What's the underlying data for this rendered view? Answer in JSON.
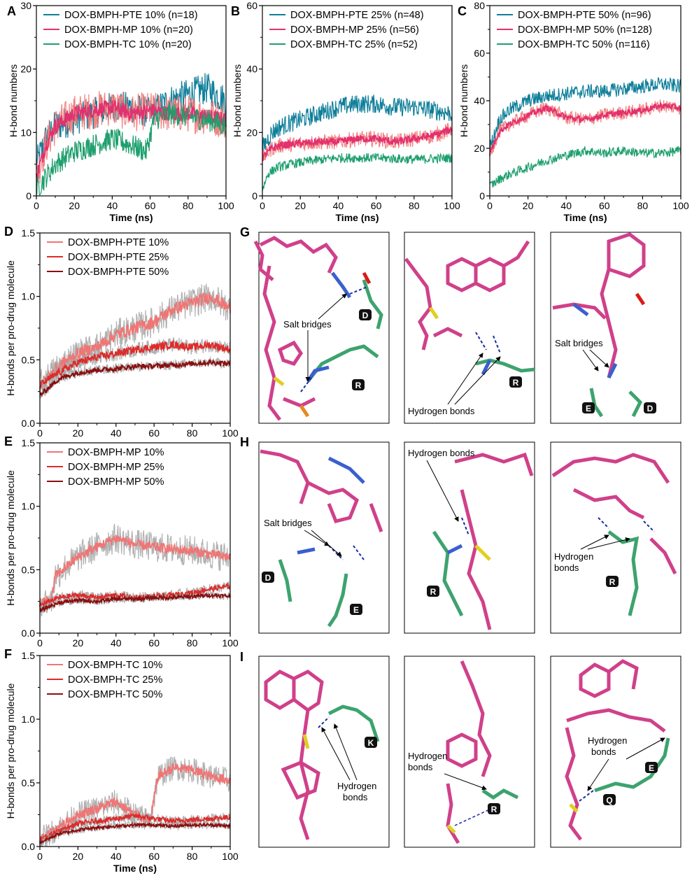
{
  "colors": {
    "pte10": "#0f7f9a",
    "mp10": "#e3306e",
    "tc10": "#1e9f6e",
    "light": "#f07575",
    "mid": "#de2b2b",
    "dark": "#8a0f0f",
    "grey": "#a8a8a8",
    "mol_pink": "#d0408a",
    "mol_green": "#3da36e",
    "mol_blue": "#3a5fd0",
    "mol_red": "#d91a1a",
    "mol_yellow": "#e0d020",
    "mol_grey": "#9a9a9a",
    "hbond": "#1a2aa0"
  },
  "chart_data": [
    {
      "id": "A",
      "type": "line",
      "ylabel": "H-bond numbers",
      "xlabel": "Time (ns)",
      "xlim": [
        0,
        100
      ],
      "ylim": [
        0,
        30
      ],
      "yticks": [
        0,
        10,
        20,
        30
      ],
      "xticks": [
        0,
        20,
        40,
        60,
        80,
        100
      ],
      "series": [
        {
          "name": "DOX-BMPH-PTE 10% (n=18)",
          "color": "#0f7f9a",
          "x": [
            0,
            5,
            10,
            20,
            30,
            40,
            50,
            60,
            70,
            80,
            90,
            100
          ],
          "y": [
            5,
            9,
            11,
            12,
            13,
            14,
            14,
            13,
            15,
            16,
            17,
            15
          ],
          "noise": 2.5
        },
        {
          "name": "DOX-BMPH-MP 10% (n=20)",
          "color": "#e3306e",
          "x": [
            0,
            5,
            10,
            20,
            30,
            40,
            50,
            60,
            70,
            80,
            90,
            100
          ],
          "y": [
            3,
            8,
            11,
            13,
            13.5,
            14,
            13,
            13.5,
            13,
            13,
            12.5,
            12
          ],
          "noise": 1.2,
          "band": "#f07575",
          "band_noise": 3
        },
        {
          "name": "DOX-BMPH-TC 10% (n=20)",
          "color": "#1e9f6e",
          "x": [
            0,
            5,
            10,
            20,
            30,
            40,
            50,
            58,
            62,
            70,
            80,
            90,
            100
          ],
          "y": [
            1,
            3,
            5,
            7,
            8,
            9,
            8,
            7,
            12,
            13,
            12.5,
            12,
            11
          ],
          "noise": 1.8
        }
      ]
    },
    {
      "id": "B",
      "type": "line",
      "ylabel": "H-bond numbers",
      "xlabel": "Time (ns)",
      "xlim": [
        0,
        100
      ],
      "ylim": [
        0,
        60
      ],
      "yticks": [
        0,
        20,
        40,
        60
      ],
      "xticks": [
        0,
        20,
        40,
        60,
        80,
        100
      ],
      "series": [
        {
          "name": "DOX-BMPH-PTE 25% (n=48)",
          "color": "#0f7f9a",
          "x": [
            0,
            5,
            10,
            20,
            30,
            40,
            50,
            60,
            70,
            80,
            90,
            100
          ],
          "y": [
            15,
            20,
            22,
            24,
            26,
            28,
            29,
            29,
            28,
            28,
            27,
            26
          ],
          "noise": 3
        },
        {
          "name": "DOX-BMPH-MP 25% (n=56)",
          "color": "#e3306e",
          "x": [
            0,
            5,
            10,
            20,
            30,
            40,
            50,
            60,
            70,
            80,
            90,
            100
          ],
          "y": [
            12,
            15,
            16,
            16.5,
            17,
            17,
            18,
            18,
            17,
            18,
            19,
            21
          ],
          "noise": 1.2,
          "band": "#f07575",
          "band_noise": 2.5
        },
        {
          "name": "DOX-BMPH-TC 25% (n=52)",
          "color": "#1e9f6e",
          "x": [
            0,
            3,
            8,
            15,
            25,
            40,
            60,
            80,
            100
          ],
          "y": [
            2,
            7,
            9,
            10,
            11,
            12,
            12,
            11.5,
            12
          ],
          "noise": 1.5
        }
      ]
    },
    {
      "id": "C",
      "type": "line",
      "ylabel": "H-bond numbers",
      "xlabel": "Time (ns)",
      "xlim": [
        0,
        100
      ],
      "ylim": [
        0,
        80
      ],
      "yticks": [
        0,
        20,
        40,
        60,
        80
      ],
      "xticks": [
        0,
        20,
        40,
        60,
        80,
        100
      ],
      "series": [
        {
          "name": "DOX-BMPH-PTE 50% (n=96)",
          "color": "#0f7f9a",
          "x": [
            0,
            5,
            10,
            20,
            30,
            40,
            50,
            60,
            70,
            80,
            90,
            100
          ],
          "y": [
            20,
            32,
            36,
            40,
            42,
            43,
            44,
            44,
            45,
            46,
            47,
            46
          ],
          "noise": 3
        },
        {
          "name": "DOX-BMPH-MP 50% (n=128)",
          "color": "#e3306e",
          "x": [
            0,
            5,
            10,
            20,
            30,
            40,
            50,
            60,
            70,
            80,
            90,
            100
          ],
          "y": [
            18,
            27,
            30,
            34,
            37,
            33,
            32,
            34,
            35,
            36,
            38,
            37
          ],
          "noise": 1.3,
          "band": "#f07575",
          "band_noise": 3
        },
        {
          "name": "DOX-BMPH-TC 50% (n=116)",
          "color": "#1e9f6e",
          "x": [
            0,
            5,
            10,
            20,
            30,
            40,
            50,
            60,
            70,
            80,
            90,
            100
          ],
          "y": [
            4,
            7,
            9,
            12,
            15,
            17,
            19,
            18,
            19,
            18,
            18,
            19
          ],
          "noise": 2
        }
      ]
    },
    {
      "id": "D",
      "type": "line",
      "ylabel": "H-bonds per pro-drug molecule",
      "xlabel": "",
      "xlim": [
        0,
        100
      ],
      "ylim": [
        0,
        1.5
      ],
      "yticks": [
        0.0,
        0.5,
        1.0,
        1.5
      ],
      "ytick_labels": [
        "0.0",
        "0.5",
        "1.0",
        "1.5"
      ],
      "xticks": [
        0,
        20,
        40,
        60,
        80,
        100
      ],
      "series": [
        {
          "name": "DOX-BMPH-PTE 10%",
          "color": "#f07575",
          "x": [
            0,
            10,
            20,
            30,
            40,
            50,
            60,
            70,
            80,
            90,
            100
          ],
          "y": [
            0.3,
            0.45,
            0.55,
            0.6,
            0.7,
            0.75,
            0.8,
            0.9,
            0.95,
            1.0,
            0.9
          ],
          "noise": 0.05,
          "band": "#a8a8a8",
          "band_noise": 0.12
        },
        {
          "name": "DOX-BMPH-PTE 25%",
          "color": "#de2b2b",
          "x": [
            0,
            10,
            20,
            30,
            40,
            50,
            60,
            70,
            80,
            90,
            100
          ],
          "y": [
            0.3,
            0.4,
            0.48,
            0.52,
            0.55,
            0.58,
            0.6,
            0.62,
            0.6,
            0.62,
            0.58
          ],
          "noise": 0.03,
          "band": "#a8a8a8",
          "band_noise": 0.06
        },
        {
          "name": "DOX-BMPH-PTE 50%",
          "color": "#8a0f0f",
          "x": [
            0,
            10,
            20,
            30,
            40,
            50,
            60,
            70,
            80,
            90,
            100
          ],
          "y": [
            0.22,
            0.35,
            0.4,
            0.42,
            0.43,
            0.45,
            0.45,
            0.46,
            0.47,
            0.48,
            0.47
          ],
          "noise": 0.02,
          "band": "#a8a8a8",
          "band_noise": 0.04
        }
      ]
    },
    {
      "id": "E",
      "type": "line",
      "ylabel": "H-bonds per pro-drug molecule",
      "xlabel": "",
      "xlim": [
        0,
        100
      ],
      "ylim": [
        0,
        1.5
      ],
      "yticks": [
        0.0,
        0.5,
        1.0,
        1.5
      ],
      "ytick_labels": [
        "0.0",
        "0.5",
        "1.0",
        "1.5"
      ],
      "xticks": [
        0,
        20,
        40,
        60,
        80,
        100
      ],
      "series": [
        {
          "name": "DOX-BMPH-MP 10%",
          "color": "#f07575",
          "x": [
            0,
            6,
            8,
            12,
            20,
            30,
            40,
            50,
            60,
            70,
            80,
            90,
            100
          ],
          "y": [
            0.25,
            0.25,
            0.45,
            0.5,
            0.6,
            0.68,
            0.75,
            0.7,
            0.68,
            0.66,
            0.65,
            0.62,
            0.6
          ],
          "noise": 0.04,
          "band": "#a8a8a8",
          "band_noise": 0.12
        },
        {
          "name": "DOX-BMPH-MP 25%",
          "color": "#de2b2b",
          "x": [
            0,
            10,
            20,
            30,
            40,
            50,
            60,
            70,
            80,
            90,
            100
          ],
          "y": [
            0.22,
            0.28,
            0.3,
            0.28,
            0.3,
            0.28,
            0.29,
            0.3,
            0.32,
            0.35,
            0.37
          ],
          "noise": 0.02,
          "band": "#a8a8a8",
          "band_noise": 0.04
        },
        {
          "name": "DOX-BMPH-MP 50%",
          "color": "#8a0f0f",
          "x": [
            0,
            10,
            20,
            30,
            40,
            50,
            60,
            70,
            80,
            90,
            100
          ],
          "y": [
            0.18,
            0.24,
            0.26,
            0.25,
            0.27,
            0.27,
            0.28,
            0.28,
            0.29,
            0.3,
            0.29
          ],
          "noise": 0.015,
          "band": "#a8a8a8",
          "band_noise": 0.03
        }
      ]
    },
    {
      "id": "F",
      "type": "line",
      "ylabel": "H-bonds per pro-drug molecule",
      "xlabel": "Time (ns)",
      "xlim": [
        0,
        100
      ],
      "ylim": [
        0,
        1.5
      ],
      "yticks": [
        0.0,
        0.5,
        1.0,
        1.5
      ],
      "ytick_labels": [
        "0.0",
        "0.5",
        "1.0",
        "1.5"
      ],
      "xticks": [
        0,
        20,
        40,
        60,
        80,
        100
      ],
      "series": [
        {
          "name": "DOX-BMPH-TC 10%",
          "color": "#f07575",
          "x": [
            0,
            10,
            20,
            30,
            40,
            50,
            58,
            62,
            70,
            80,
            90,
            100
          ],
          "y": [
            0.05,
            0.15,
            0.25,
            0.3,
            0.35,
            0.25,
            0.2,
            0.55,
            0.62,
            0.6,
            0.55,
            0.52
          ],
          "noise": 0.04,
          "band": "#a8a8a8",
          "band_noise": 0.1
        },
        {
          "name": "DOX-BMPH-TC 25%",
          "color": "#de2b2b",
          "x": [
            0,
            10,
            20,
            30,
            40,
            50,
            60,
            70,
            80,
            90,
            100
          ],
          "y": [
            0.05,
            0.12,
            0.18,
            0.2,
            0.22,
            0.24,
            0.22,
            0.2,
            0.21,
            0.22,
            0.23
          ],
          "noise": 0.02,
          "band": "#a8a8a8",
          "band_noise": 0.04
        },
        {
          "name": "DOX-BMPH-TC 50%",
          "color": "#8a0f0f",
          "x": [
            0,
            10,
            20,
            30,
            40,
            50,
            60,
            70,
            80,
            90,
            100
          ],
          "y": [
            0.03,
            0.1,
            0.13,
            0.15,
            0.16,
            0.17,
            0.17,
            0.16,
            0.17,
            0.17,
            0.16
          ],
          "noise": 0.012,
          "band": "#a8a8a8",
          "band_noise": 0.03
        }
      ]
    }
  ],
  "structure_panels": {
    "G": {
      "label": "G",
      "p1": {
        "annotation": "Salt bridges",
        "residues": [
          "D",
          "R"
        ]
      },
      "p2": {
        "annotation": "Hydrogen bonds",
        "residues": [
          "R"
        ]
      },
      "p3": {
        "annotation": "Salt bridges",
        "residues": [
          "E",
          "D"
        ]
      }
    },
    "H": {
      "label": "H",
      "p1": {
        "annotation": "Salt bridges",
        "residues": [
          "D",
          "E"
        ]
      },
      "p2": {
        "annotation": "Hydrogen bonds",
        "residues": [
          "R"
        ]
      },
      "p3": {
        "annotation_line1": "Hydrogen",
        "annotation_line2": "bonds",
        "residues": [
          "R"
        ]
      }
    },
    "I": {
      "label": "I",
      "p1": {
        "annotation_line1": "Hydrogen",
        "annotation_line2": "bonds",
        "residues": [
          "K"
        ]
      },
      "p2": {
        "annotation_line1": "Hydrogen",
        "annotation_line2": "bonds",
        "residues": [
          "R"
        ]
      },
      "p3": {
        "annotation_line1": "Hydrogen",
        "annotation_line2": "bonds",
        "residues": [
          "E",
          "Q"
        ]
      }
    }
  }
}
